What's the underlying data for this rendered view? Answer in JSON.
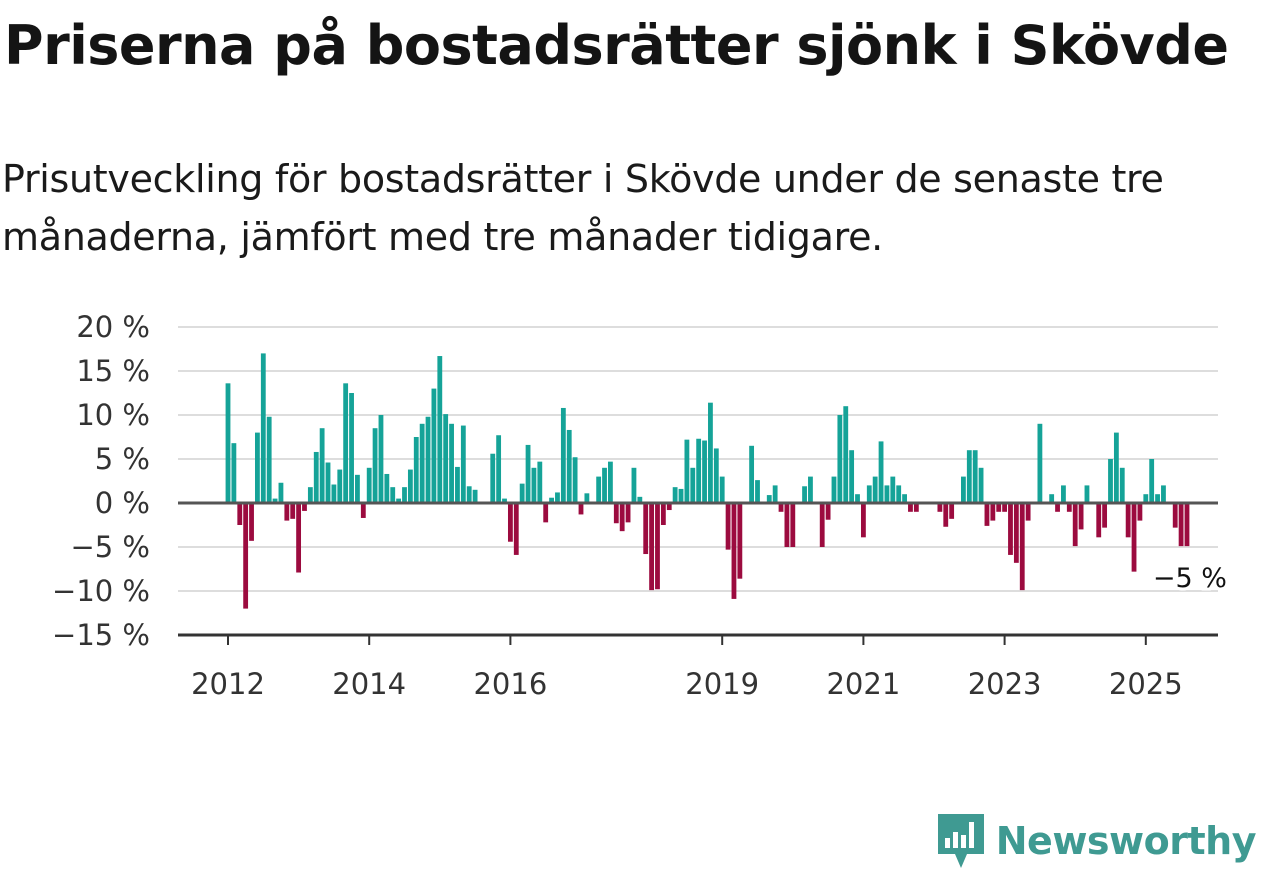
{
  "title": "Priserna på bostadsrätter sjönk i Skövde",
  "subtitle": "Prisutveckling för bostadsrätter i Skövde under de senaste tre månaderna, jämfört med tre månader tidigare.",
  "brand": {
    "name": "Newsworthy",
    "color": "#3f9a92",
    "icon": "newsworthy-logo-icon"
  },
  "colors": {
    "positive": "#15a398",
    "negative": "#9c0b3f",
    "grid": "#dddddd",
    "zero": "#555555"
  },
  "chart_data": {
    "type": "bar",
    "ylabel": "",
    "xlabel": "",
    "ylim": [
      -15,
      20
    ],
    "y_ticks": [
      20,
      15,
      10,
      5,
      0,
      -5,
      -10,
      -15
    ],
    "y_tick_labels": [
      "20 %",
      "15 %",
      "10 %",
      "5 %",
      "0 %",
      "−5 %",
      "−10 %",
      "−15 %"
    ],
    "x_ticks": [
      2012,
      2014,
      2016,
      2019,
      2021,
      2023,
      2025
    ],
    "x_tick_labels": [
      "2012",
      "2014",
      "2016",
      "2019",
      "2021",
      "2023",
      "2025"
    ],
    "start": "2012-01",
    "grid": true,
    "annotation": {
      "text": "−5 %",
      "value": -5
    },
    "values": [
      13.6,
      6.8,
      -2.5,
      -12,
      -4.3,
      8,
      17,
      9.8,
      0.5,
      2.3,
      -2,
      -1.8,
      -7.9,
      -0.9,
      1.8,
      5.8,
      8.5,
      4.6,
      2.1,
      3.8,
      13.6,
      12.5,
      3.2,
      -1.7,
      4,
      8.5,
      10,
      3.3,
      1.8,
      0.5,
      1.8,
      3.8,
      7.5,
      9,
      9.8,
      13,
      16.7,
      10.1,
      9,
      4.1,
      8.8,
      1.9,
      1.5,
      0,
      0,
      5.6,
      7.7,
      0.5,
      -4.4,
      -5.9,
      2.2,
      6.6,
      4,
      4.7,
      -2.2,
      0.6,
      1.2,
      10.8,
      8.3,
      5.2,
      -1.3,
      1.1,
      0,
      3,
      4,
      4.7,
      -2.3,
      -3.2,
      -2.2,
      4,
      0.7,
      -5.8,
      -9.9,
      -9.8,
      -2.5,
      -0.8,
      1.8,
      1.6,
      7.2,
      4,
      7.3,
      7.1,
      11.4,
      6.2,
      3,
      -5.3,
      -10.9,
      -8.6,
      0,
      6.5,
      2.6,
      0,
      0.9,
      2,
      -1,
      -5,
      -5,
      0,
      1.9,
      3,
      0,
      -5,
      -1.9,
      3,
      10,
      11,
      6,
      1,
      -3.9,
      2,
      3,
      7,
      2,
      3,
      2,
      1,
      -1,
      -1,
      0,
      0,
      0,
      -1,
      -2.7,
      -1.8,
      0,
      3,
      6,
      6,
      4,
      -2.6,
      -2,
      -1,
      -1,
      -5.9,
      -6.8,
      -9.9,
      -2,
      0,
      9,
      0,
      1,
      -1,
      2,
      -1,
      -4.9,
      -3,
      2,
      0,
      -3.9,
      -2.8,
      5,
      8,
      4,
      -3.9,
      -7.8,
      -2,
      1,
      5,
      1,
      2,
      0,
      -2.8,
      -4.9,
      -4.9
    ]
  }
}
